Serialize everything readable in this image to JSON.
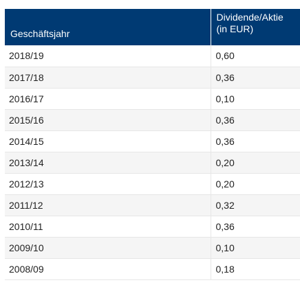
{
  "table": {
    "headers": {
      "year": "Geschäftsjahr",
      "dividend_line1": "Dividende/Aktie",
      "dividend_line2": "(in EUR)"
    },
    "rows": [
      {
        "year": "2018/19",
        "dividend": "0,60"
      },
      {
        "year": "2017/18",
        "dividend": "0,36"
      },
      {
        "year": "2016/17",
        "dividend": "0,10"
      },
      {
        "year": "2015/16",
        "dividend": "0,36"
      },
      {
        "year": "2014/15",
        "dividend": "0,36"
      },
      {
        "year": "2013/14",
        "dividend": "0,20"
      },
      {
        "year": "2012/13",
        "dividend": "0,20"
      },
      {
        "year": "2011/12",
        "dividend": "0,32"
      },
      {
        "year": "2010/11",
        "dividend": "0,36"
      },
      {
        "year": "2009/10",
        "dividend": "0,10"
      },
      {
        "year": "2008/09",
        "dividend": "0,18"
      }
    ]
  }
}
